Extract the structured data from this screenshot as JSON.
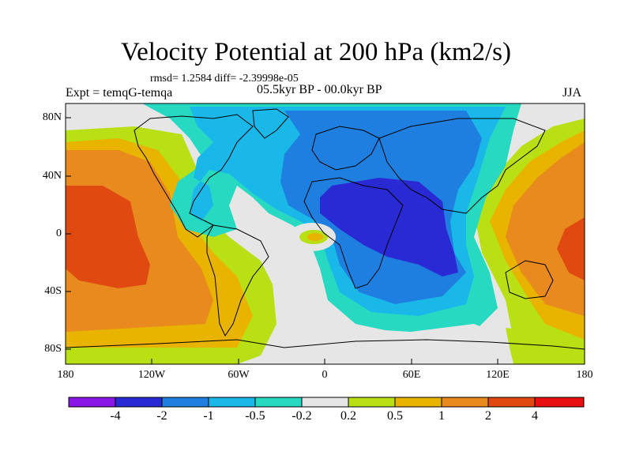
{
  "title": "Velocity Potential at 200 hPa (km2/s)",
  "stats": "rmsd= 1.2584 diff= -2.39998e-05",
  "experiment": "Expt = temqG-temqa",
  "period": "05.5kyr BP - 00.0kyr BP",
  "season": "JJA",
  "y_ticks": [
    "80N",
    "40N",
    "0",
    "40S",
    "80S"
  ],
  "x_ticks": [
    "180",
    "120W",
    "60W",
    "0",
    "60E",
    "120E",
    "180"
  ],
  "colorbar": {
    "labels": [
      "-4",
      "-2",
      "-1",
      "-0.5",
      "-0.2",
      "0.2",
      "0.5",
      "1",
      "2",
      "4"
    ],
    "colors": [
      "#8a17e6",
      "#2a2ad4",
      "#1f7fe0",
      "#19b8e8",
      "#28d9c2",
      "#e6e6e6",
      "#b8e014",
      "#e8b400",
      "#e88a1e",
      "#e04a10",
      "#e81010"
    ]
  },
  "map_colors": {
    "ocean_background": "#e6e6e6",
    "coast": "#000000"
  }
}
